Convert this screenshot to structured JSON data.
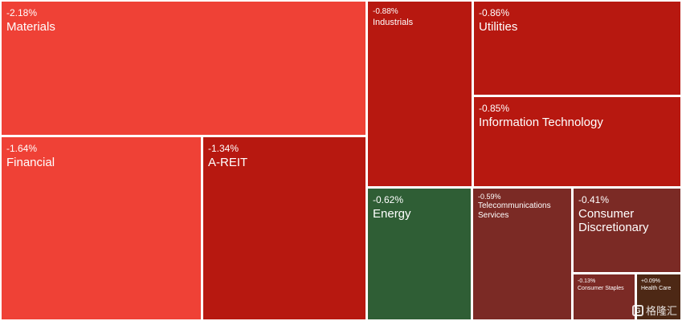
{
  "chart_data": {
    "type": "treemap",
    "title": "",
    "tiles": [
      {
        "name": "Materials",
        "change": "-2.18%",
        "value": -2.18,
        "color": "#ef4136"
      },
      {
        "name": "Financial",
        "change": "-1.64%",
        "value": -1.64,
        "color": "#ef4136"
      },
      {
        "name": "A-REIT",
        "change": "-1.34%",
        "value": -1.34,
        "color": "#b71810"
      },
      {
        "name": "Industrials",
        "change": "-0.88%",
        "value": -0.88,
        "color": "#b71810"
      },
      {
        "name": "Utilities",
        "change": "-0.86%",
        "value": -0.86,
        "color": "#b71810"
      },
      {
        "name": "Information Technology",
        "change": "-0.85%",
        "value": -0.85,
        "color": "#b71810"
      },
      {
        "name": "Energy",
        "change": "-0.62%",
        "value": -0.62,
        "color": "#2f5e35"
      },
      {
        "name": "Telecommunications Services",
        "change": "-0.59%",
        "value": -0.59,
        "color": "#7b2a25"
      },
      {
        "name": "Consumer Discretionary",
        "change": "-0.41%",
        "value": -0.41,
        "color": "#7b2a25"
      },
      {
        "name": "Consumer Staples",
        "change": "-0.13%",
        "value": -0.13,
        "color": "#7b2a25"
      },
      {
        "name": "Health Care",
        "change": "+0.09%",
        "value": 0.09,
        "color": "#4d2815"
      }
    ]
  },
  "watermark": {
    "text": "格隆汇",
    "icon": "gelonghui-logo-icon"
  }
}
